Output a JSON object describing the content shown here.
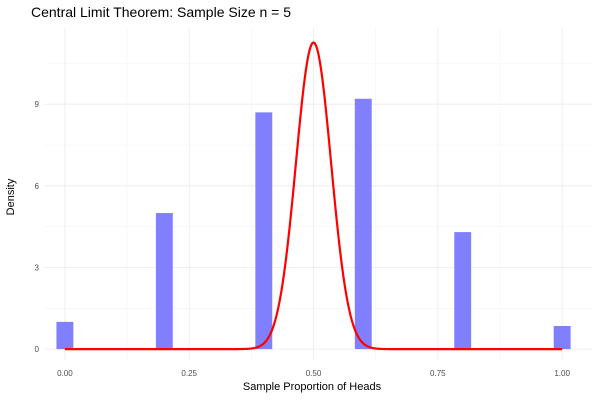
{
  "chart_data": {
    "type": "bar",
    "title": "Central Limit Theorem: Sample Size n = 5",
    "xlabel": "Sample Proportion of Heads",
    "ylabel": "Density",
    "xlim": [
      -0.04,
      1.06
    ],
    "ylim": [
      -0.4,
      11.8
    ],
    "x_ticks": [
      {
        "value": 0,
        "label": "0.00"
      },
      {
        "value": 0.25,
        "label": "0.25"
      },
      {
        "value": 0.5,
        "label": "0.50"
      },
      {
        "value": 0.75,
        "label": "0.75"
      },
      {
        "value": 1,
        "label": "1.00"
      }
    ],
    "y_ticks": [
      {
        "value": 0,
        "label": "0"
      },
      {
        "value": 3,
        "label": "3"
      },
      {
        "value": 6,
        "label": "6"
      },
      {
        "value": 9,
        "label": "9"
      }
    ],
    "grid": true,
    "bar_width": 0.034,
    "histogram": {
      "x": [
        0.0,
        0.2,
        0.4,
        0.6,
        0.8,
        1.0
      ],
      "values": [
        1.0,
        5.0,
        8.7,
        9.2,
        4.3,
        0.85
      ],
      "color": "#8080ff"
    },
    "normal_curve": {
      "mean": 0.5,
      "sd": 0.0354,
      "color": "#ff0000",
      "x_range": [
        0.0,
        1.0
      ]
    }
  }
}
